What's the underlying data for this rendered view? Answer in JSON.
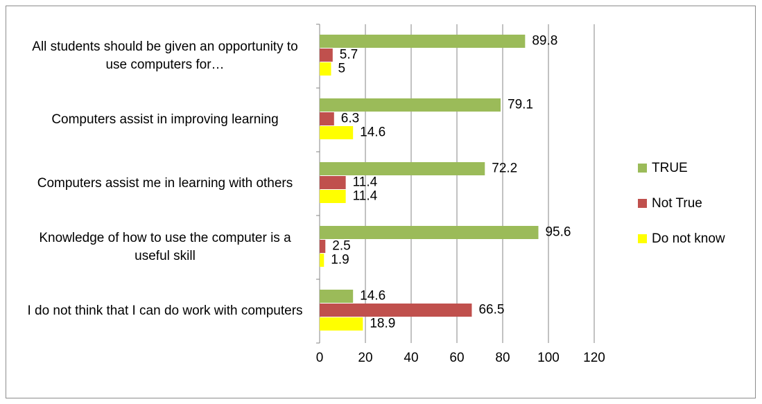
{
  "chart_data": {
    "type": "hbar",
    "categories": [
      "All students should be given an opportunity to use computers for…",
      "Computers assist in improving learning",
      "Computers assist me in learning with others",
      "Knowledge of how to use the computer is a useful skill",
      "I do not think that I can do work with computers"
    ],
    "series": [
      {
        "name": "TRUE",
        "color": "#9bbb59",
        "values": [
          89.8,
          79.1,
          72.2,
          95.6,
          14.6
        ]
      },
      {
        "name": "Not True",
        "color": "#c0504d",
        "values": [
          5.7,
          6.3,
          11.4,
          2.5,
          66.5
        ]
      },
      {
        "name": "Do not know",
        "color": "#ffff00",
        "values": [
          5,
          14.6,
          11.4,
          1.9,
          18.9
        ]
      }
    ],
    "xlim": [
      0,
      120
    ],
    "xticks": [
      0,
      20,
      40,
      60,
      80,
      100,
      120
    ],
    "grid": true,
    "legend": "right"
  }
}
